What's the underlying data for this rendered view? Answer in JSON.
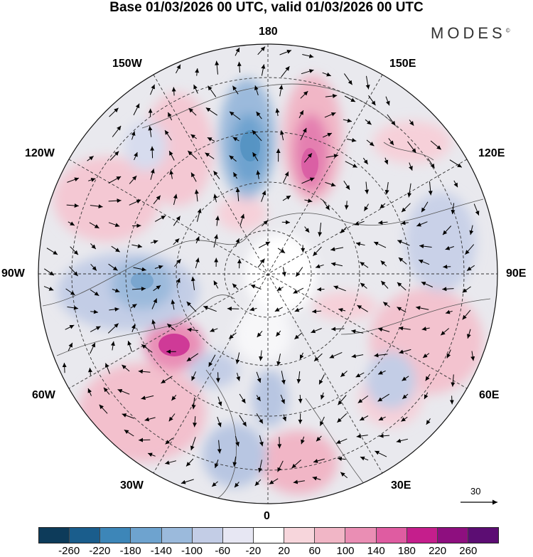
{
  "header": {
    "title": "Base 01/03/2026 00 UTC, valid 01/03/2026 00 UTC",
    "brand": "MODES",
    "brand_mark": "©"
  },
  "map": {
    "projection": "north polar stereographic",
    "longitude_labels": {
      "top": "180",
      "bottom": "0",
      "left": "90W",
      "right": "90E",
      "upper_left_1": "150W",
      "upper_left_2": "120W",
      "upper_right_1": "150E",
      "upper_right_2": "120E",
      "lower_left_1": "60W",
      "lower_left_2": "30W",
      "lower_right_1": "60E",
      "lower_right_2": "30E"
    },
    "reference_vector_label": "30"
  },
  "colorbar": {
    "ticks": [
      "-260",
      "-220",
      "-180",
      "-140",
      "-100",
      "-60",
      "-20",
      "20",
      "60",
      "100",
      "140",
      "180",
      "220",
      "260"
    ],
    "colors": [
      "#0d3b5a",
      "#1a5d8c",
      "#3d86b8",
      "#6ea3cf",
      "#9bbadc",
      "#c3cde6",
      "#e7e7f3",
      "#ffffff",
      "#f7d6dc",
      "#f1b6c6",
      "#ea8eb4",
      "#df5ca1",
      "#c51e8c",
      "#8e0f7f",
      "#5c0d73"
    ]
  }
}
